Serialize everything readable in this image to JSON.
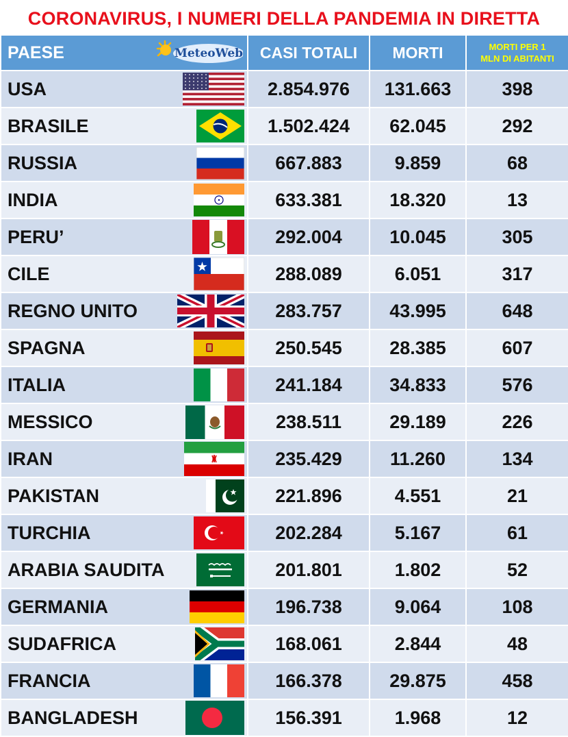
{
  "title": "CORONAVIRUS, I NUMERI DELLA PANDEMIA IN DIRETTA",
  "logo": {
    "text": "MeteoWeb"
  },
  "headers": {
    "paese": "PAESE",
    "casi": "CASI TOTALI",
    "morti": "MORTI",
    "per_mln_1": "MORTI PER 1",
    "per_mln_2": "MLN DI ABITANTI"
  },
  "rows": [
    {
      "country": "USA",
      "flag": "usa-flag-icon",
      "cases": "2.854.976",
      "deaths": "131.663",
      "per_mln": "398"
    },
    {
      "country": "BRASILE",
      "flag": "brazil-flag-icon",
      "cases": "1.502.424",
      "deaths": "62.045",
      "per_mln": "292"
    },
    {
      "country": "RUSSIA",
      "flag": "russia-flag-icon",
      "cases": "667.883",
      "deaths": "9.859",
      "per_mln": "68"
    },
    {
      "country": "INDIA",
      "flag": "india-flag-icon",
      "cases": "633.381",
      "deaths": "18.320",
      "per_mln": "13"
    },
    {
      "country": "PERU’",
      "flag": "peru-flag-icon",
      "cases": "292.004",
      "deaths": "10.045",
      "per_mln": "305"
    },
    {
      "country": "CILE",
      "flag": "chile-flag-icon",
      "cases": "288.089",
      "deaths": "6.051",
      "per_mln": "317"
    },
    {
      "country": "REGNO UNITO",
      "flag": "uk-flag-icon",
      "cases": "283.757",
      "deaths": "43.995",
      "per_mln": "648"
    },
    {
      "country": "SPAGNA",
      "flag": "spain-flag-icon",
      "cases": "250.545",
      "deaths": "28.385",
      "per_mln": "607"
    },
    {
      "country": "ITALIA",
      "flag": "italy-flag-icon",
      "cases": "241.184",
      "deaths": "34.833",
      "per_mln": "576"
    },
    {
      "country": "MESSICO",
      "flag": "mexico-flag-icon",
      "cases": "238.511",
      "deaths": "29.189",
      "per_mln": "226"
    },
    {
      "country": "IRAN",
      "flag": "iran-flag-icon",
      "cases": "235.429",
      "deaths": "11.260",
      "per_mln": "134"
    },
    {
      "country": "PAKISTAN",
      "flag": "pakistan-flag-icon",
      "cases": "221.896",
      "deaths": "4.551",
      "per_mln": "21"
    },
    {
      "country": "TURCHIA",
      "flag": "turkey-flag-icon",
      "cases": "202.284",
      "deaths": "5.167",
      "per_mln": "61"
    },
    {
      "country": "ARABIA SAUDITA",
      "flag": "saudi-arabia-flag-icon",
      "cases": "201.801",
      "deaths": "1.802",
      "per_mln": "52"
    },
    {
      "country": "GERMANIA",
      "flag": "germany-flag-icon",
      "cases": "196.738",
      "deaths": "9.064",
      "per_mln": "108"
    },
    {
      "country": "SUDAFRICA",
      "flag": "south-africa-flag-icon",
      "cases": "168.061",
      "deaths": "2.844",
      "per_mln": "48"
    },
    {
      "country": "FRANCIA",
      "flag": "france-flag-icon",
      "cases": "166.378",
      "deaths": "29.875",
      "per_mln": "458"
    },
    {
      "country": "BANGLADESH",
      "flag": "bangladesh-flag-icon",
      "cases": "156.391",
      "deaths": "1.968",
      "per_mln": "12"
    }
  ],
  "colors": {
    "title": "#e8101c",
    "header_bg": "#5b9bd5",
    "header_small_text": "#ffff00",
    "row_dark": "#d0dbec",
    "row_light": "#e9eef6"
  }
}
